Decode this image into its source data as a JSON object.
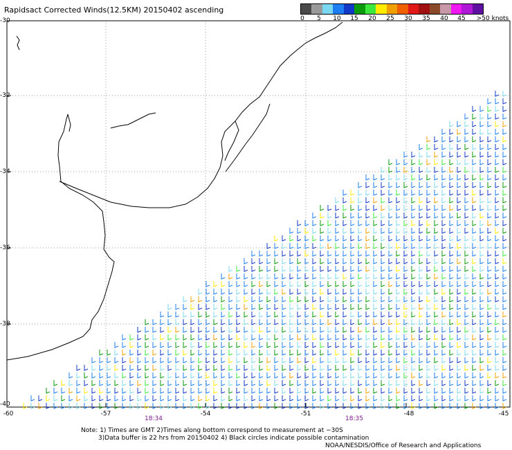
{
  "header": {
    "title": "Rapidsact Corrected Winds(12.5KM) 20150402 ascending"
  },
  "legend": {
    "colors": [
      "#4a4a4a",
      "#9a9a9a",
      "#7ad8f0",
      "#1c7ef0",
      "#1238c8",
      "#0a9a0a",
      "#3ce83c",
      "#ffea00",
      "#f0a000",
      "#f06000",
      "#e01818",
      "#a01010",
      "#8a4a2a",
      "#c898a8",
      "#f018f0",
      "#b018d8",
      "#6010a0"
    ],
    "labels": [
      "0",
      "5",
      "10",
      "15",
      "20",
      "25",
      "30",
      "35",
      "40",
      "45",
      ">50 knots"
    ]
  },
  "map": {
    "y_labels": [
      "-30",
      "-32",
      "-34",
      "-36",
      "-38",
      "-40"
    ],
    "x_labels": [
      "-60",
      "-57",
      "-54",
      "-51",
      "-48",
      "-45"
    ],
    "times": [
      "18:34",
      "18:35"
    ]
  },
  "notes": {
    "line1": "Note: 1) Times are GMT 2)Times along bottom correspond to measurement at −30S",
    "line2": "3)Data buffer is 22 hrs from 20150402 4) Black circles indicate possible contamination",
    "credit": "NOAA/NESDIS/Office of Research and Applications"
  }
}
